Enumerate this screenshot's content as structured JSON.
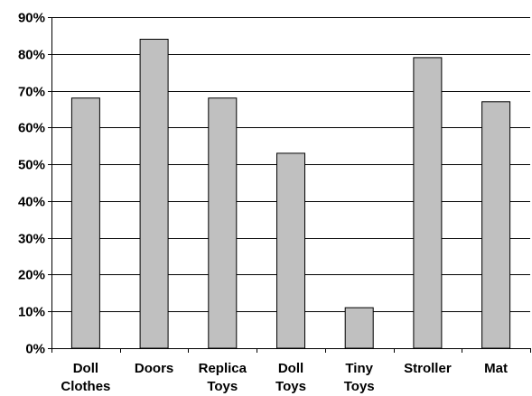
{
  "chart_data": {
    "type": "bar",
    "categories": [
      [
        "Doll",
        "Clothes"
      ],
      [
        "Doors"
      ],
      [
        "Replica",
        "Toys"
      ],
      [
        "Doll",
        "Toys"
      ],
      [
        "Tiny",
        "Toys"
      ],
      [
        "Stroller"
      ],
      [
        "Mat"
      ]
    ],
    "values": [
      68,
      84,
      68,
      53,
      11,
      79,
      67
    ],
    "ylim": [
      0,
      90
    ],
    "ytick_values": [
      0,
      10,
      20,
      30,
      40,
      50,
      60,
      70,
      80,
      90
    ],
    "ytick_labels": [
      "0%",
      "10%",
      "20%",
      "30%",
      "40%",
      "50%",
      "60%",
      "70%",
      "80%",
      "90%"
    ],
    "title": "",
    "xlabel": "",
    "ylabel": "",
    "grid": true,
    "legend": "none",
    "colors": {
      "bar_fill": "#c0c0c0",
      "bar_stroke": "#000000",
      "gridline": "#000000",
      "axis": "#000000"
    }
  }
}
